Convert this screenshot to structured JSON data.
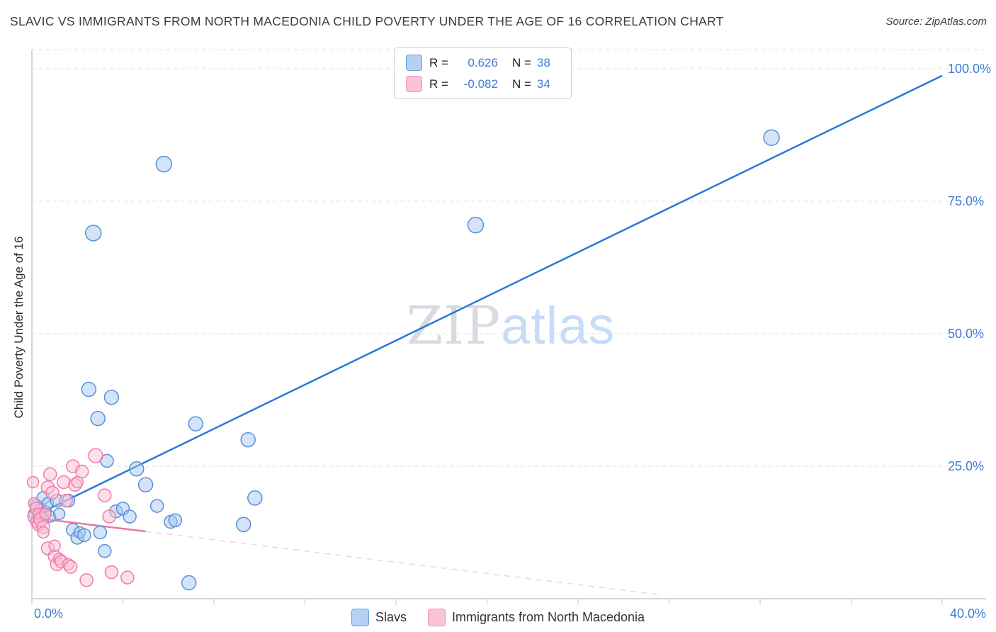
{
  "header": {
    "title": "SLAVIC VS IMMIGRANTS FROM NORTH MACEDONIA CHILD POVERTY UNDER THE AGE OF 16 CORRELATION CHART",
    "source": "Source: ZipAtlas.com"
  },
  "watermark": {
    "zip": "ZIP",
    "atlas": "atlas"
  },
  "legend_box": {
    "r_label": "R =",
    "n_label": "N =",
    "rows": [
      {
        "r": "0.626",
        "n": "38"
      },
      {
        "r": "-0.082",
        "n": "34"
      }
    ]
  },
  "chart_data": {
    "type": "scatter",
    "title": "SLAVIC VS IMMIGRANTS FROM NORTH MACEDONIA CHILD POVERTY UNDER THE AGE OF 16 CORRELATION CHART",
    "xlabel": "",
    "ylabel": "Child Poverty Under the Age of 16",
    "x_axis_max": 0.4,
    "xlim": [
      0,
      0.42
    ],
    "ylim": [
      0,
      1.036
    ],
    "grid": "dashed horizontal",
    "legend_position": "top-center and bottom-center",
    "colors": {
      "accent": "#3E7BD6",
      "grid": "#e2e2e2",
      "axis": "#c9c9c9"
    },
    "x_ticks": [
      {
        "value": 0.0,
        "label": "0.0%"
      },
      {
        "value": 0.4,
        "label": "40.0%"
      }
    ],
    "x_tick_marks": [
      0,
      0.04,
      0.08,
      0.12,
      0.16,
      0.2,
      0.24,
      0.28,
      0.32,
      0.36,
      0.4
    ],
    "y_ticks": [
      {
        "value": 1.0,
        "label": "100.0%"
      },
      {
        "value": 0.75,
        "label": "75.0%"
      },
      {
        "value": 0.5,
        "label": "50.0%"
      },
      {
        "value": 0.25,
        "label": "25.0%"
      }
    ],
    "series": [
      {
        "name": "Slavs",
        "R": 0.626,
        "N": 38,
        "fill": "#A7C7F2",
        "stroke": "#5A8FD6",
        "points": [
          [
            0.001,
            0.16,
            8
          ],
          [
            0.002,
            0.175,
            9
          ],
          [
            0.003,
            0.155,
            8
          ],
          [
            0.004,
            0.17,
            8
          ],
          [
            0.005,
            0.19,
            9
          ],
          [
            0.006,
            0.165,
            8
          ],
          [
            0.007,
            0.18,
            8
          ],
          [
            0.008,
            0.155,
            8
          ],
          [
            0.011,
            0.185,
            9
          ],
          [
            0.012,
            0.16,
            8
          ],
          [
            0.016,
            0.185,
            9
          ],
          [
            0.018,
            0.13,
            9
          ],
          [
            0.02,
            0.115,
            9
          ],
          [
            0.021,
            0.125,
            8
          ],
          [
            0.023,
            0.12,
            9
          ],
          [
            0.025,
            0.395,
            10
          ],
          [
            0.027,
            0.69,
            11
          ],
          [
            0.029,
            0.34,
            10
          ],
          [
            0.03,
            0.125,
            9
          ],
          [
            0.032,
            0.09,
            9
          ],
          [
            0.033,
            0.26,
            9
          ],
          [
            0.035,
            0.38,
            10
          ],
          [
            0.037,
            0.165,
            9
          ],
          [
            0.04,
            0.17,
            9
          ],
          [
            0.043,
            0.155,
            9
          ],
          [
            0.046,
            0.245,
            10
          ],
          [
            0.05,
            0.215,
            10
          ],
          [
            0.055,
            0.175,
            9
          ],
          [
            0.058,
            0.82,
            11
          ],
          [
            0.061,
            0.145,
            9
          ],
          [
            0.063,
            0.148,
            9
          ],
          [
            0.069,
            0.03,
            10
          ],
          [
            0.072,
            0.33,
            10
          ],
          [
            0.093,
            0.14,
            10
          ],
          [
            0.095,
            0.3,
            10
          ],
          [
            0.098,
            0.19,
            10
          ],
          [
            0.195,
            0.705,
            11
          ],
          [
            0.325,
            0.87,
            11
          ]
        ]
      },
      {
        "name": "Immigrants from North Macedonia",
        "R": -0.082,
        "N": 34,
        "fill": "#F9C0D6",
        "stroke": "#F07BA8",
        "points": [
          [
            0.0005,
            0.22,
            8
          ],
          [
            0.001,
            0.18,
            8
          ],
          [
            0.001,
            0.155,
            9
          ],
          [
            0.002,
            0.17,
            9
          ],
          [
            0.002,
            0.145,
            8
          ],
          [
            0.003,
            0.16,
            8
          ],
          [
            0.003,
            0.14,
            9
          ],
          [
            0.004,
            0.15,
            10
          ],
          [
            0.005,
            0.135,
            9
          ],
          [
            0.005,
            0.125,
            8
          ],
          [
            0.006,
            0.16,
            8
          ],
          [
            0.007,
            0.095,
            9
          ],
          [
            0.007,
            0.21,
            9
          ],
          [
            0.008,
            0.235,
            9
          ],
          [
            0.009,
            0.2,
            9
          ],
          [
            0.01,
            0.08,
            9
          ],
          [
            0.01,
            0.1,
            8
          ],
          [
            0.011,
            0.065,
            9
          ],
          [
            0.012,
            0.075,
            8
          ],
          [
            0.013,
            0.07,
            9
          ],
          [
            0.014,
            0.22,
            9
          ],
          [
            0.015,
            0.185,
            9
          ],
          [
            0.016,
            0.065,
            8
          ],
          [
            0.017,
            0.06,
            9
          ],
          [
            0.018,
            0.25,
            9
          ],
          [
            0.019,
            0.215,
            9
          ],
          [
            0.02,
            0.22,
            8
          ],
          [
            0.022,
            0.24,
            9
          ],
          [
            0.024,
            0.035,
            9
          ],
          [
            0.028,
            0.27,
            10
          ],
          [
            0.032,
            0.195,
            9
          ],
          [
            0.034,
            0.155,
            9
          ],
          [
            0.035,
            0.05,
            9
          ],
          [
            0.042,
            0.04,
            9
          ]
        ]
      }
    ],
    "trendlines": [
      {
        "series": "Slavs",
        "x1": 0.0005,
        "y1": 0.155,
        "x2": 0.4,
        "y2": 0.987,
        "style": "solid",
        "color": "#2979d9",
        "width": 2.5
      },
      {
        "series": "Immigrants from North Macedonia",
        "x1": 0.0,
        "y1": 0.153,
        "x2": 0.05,
        "y2": 0.127,
        "style": "solid",
        "color": "#e8799f",
        "width": 2.5
      },
      {
        "series": "Immigrants from North Macedonia",
        "x1": 0.05,
        "y1": 0.127,
        "x2": 0.275,
        "y2": 0.008,
        "style": "dashed",
        "color": "#f2a9c0",
        "width": 1.5
      }
    ]
  }
}
